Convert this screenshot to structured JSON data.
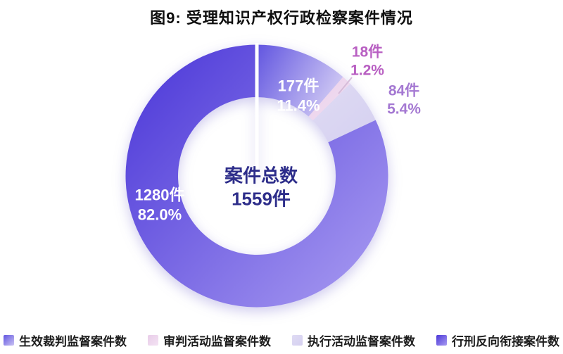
{
  "title": "图9: 受理知识产权行政检察案件情况",
  "center": {
    "line1": "案件总数",
    "line2": "1559件",
    "color": "#2d2d8a"
  },
  "chart_data": {
    "type": "pie",
    "subtype": "donut",
    "title": "图9: 受理知识产权行政检察案件情况",
    "total_cases": 1559,
    "center_label": "案件总数 1559件",
    "start_angle": "12-oclock",
    "direction": "clockwise",
    "legend_position": "bottom",
    "segments": [
      {
        "label": "生效裁判监督案件数",
        "cases": 177,
        "percent": 11.4,
        "cases_label": "177件",
        "percent_label": "11.4%",
        "colors": [
          "#6155e0",
          "#cbc4f3"
        ],
        "label_color": "#ffffff"
      },
      {
        "label": "审判活动监督案件数",
        "cases": 18,
        "percent": 1.2,
        "cases_label": "18件",
        "percent_label": "1.2%",
        "colors": [
          "#e9cde9",
          "#f3e2f3"
        ],
        "label_color": "#b85fc2"
      },
      {
        "label": "执行活动监督案件数",
        "cases": 84,
        "percent": 5.4,
        "cases_label": "84件",
        "percent_label": "5.4%",
        "colors": [
          "#dfdbf4",
          "#d5d0f0"
        ],
        "label_color": "#a478d2"
      },
      {
        "label": "行刑反向衔接案件数",
        "cases": 1280,
        "percent": 82.0,
        "cases_label": "1280件",
        "percent_label": "82.0%",
        "colors": [
          "#4b37d8",
          "#a89bf1"
        ],
        "label_color": "#ffffff"
      }
    ]
  },
  "legend": {
    "items": [
      {
        "label": "生效裁判监督案件数"
      },
      {
        "label": "审判活动监督案件数"
      },
      {
        "label": "执行活动监督案件数"
      },
      {
        "label": "行刑反向衔接案件数"
      }
    ]
  }
}
